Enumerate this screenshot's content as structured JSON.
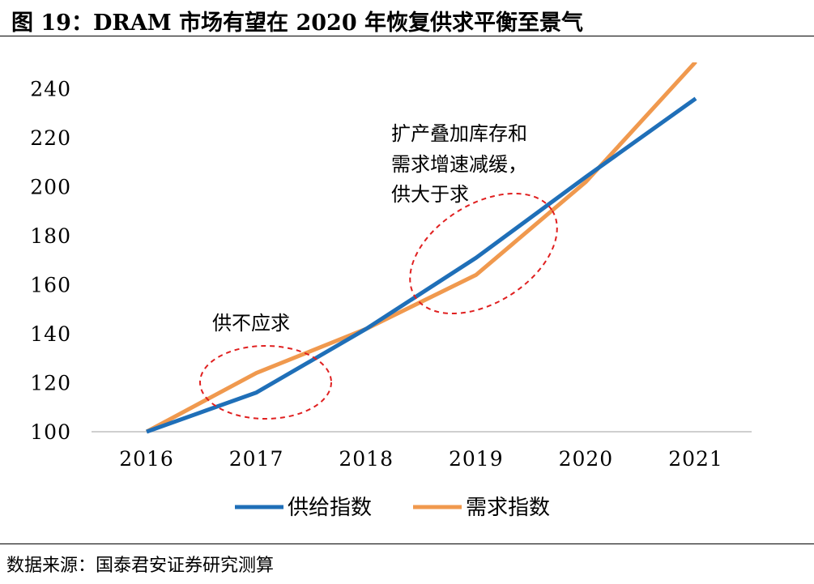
{
  "header": {
    "title": "图 19：DRAM 市场有望在 2020 年恢复供求平衡至景气"
  },
  "footer": {
    "source": "数据来源：国泰君安证券研究测算"
  },
  "colors": {
    "supply": "#1f6fb8",
    "demand": "#f0994e",
    "ellipse": "#e02020"
  },
  "chart_data": {
    "type": "line",
    "categories": [
      "2016",
      "2017",
      "2018",
      "2019",
      "2020",
      "2021"
    ],
    "series": [
      {
        "name": "供给指数",
        "values": [
          100,
          116,
          142,
          171,
          204,
          236
        ]
      },
      {
        "name": "需求指数",
        "values": [
          100,
          124,
          142,
          164,
          202,
          251
        ]
      }
    ],
    "ylim": [
      100,
      240
    ],
    "yticks": [
      100,
      120,
      140,
      160,
      180,
      200,
      220,
      240
    ],
    "legend_position": "bottom",
    "grid": false,
    "annotations": [
      {
        "text": "供不应求",
        "near": "2017"
      },
      {
        "lines": [
          "扩产叠加库存和",
          "需求增速减缓，",
          "供大于求"
        ],
        "near": "2019"
      }
    ]
  }
}
